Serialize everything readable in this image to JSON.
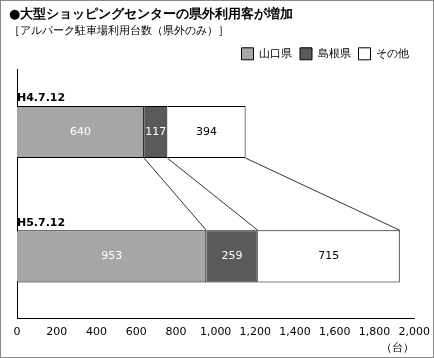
{
  "chart_data": {
    "type": "bar",
    "orientation": "horizontal",
    "stacked": true,
    "title": "●大型ショッピングセンターの県外利用客が増加",
    "subtitle": "［アルパーク駐車場利用台数（県外のみ）］",
    "xlabel": "（台）",
    "categories": [
      "H4.7.12",
      "H5.7.12"
    ],
    "series": [
      {
        "name": "山口県",
        "color": "#a6a6a6",
        "values": [
          640,
          953
        ]
      },
      {
        "name": "島根県",
        "color": "#5a5a5a",
        "values": [
          117,
          259
        ]
      },
      {
        "name": "その他",
        "color": "#ffffff",
        "values": [
          394,
          715
        ]
      }
    ],
    "xlim": [
      0,
      2000
    ],
    "xticks": [
      0,
      200,
      400,
      600,
      800,
      {
        "value": 1000,
        "label": "1,000"
      },
      {
        "value": 1200,
        "label": "1,200"
      },
      {
        "value": 1400,
        "label": "1,400"
      },
      {
        "value": 1600,
        "label": "1,600"
      },
      {
        "value": 1800,
        "label": "1,800"
      },
      {
        "value": 2000,
        "label": "2,000"
      }
    ],
    "grid": false,
    "legend": "top-right",
    "data_labels": true
  }
}
